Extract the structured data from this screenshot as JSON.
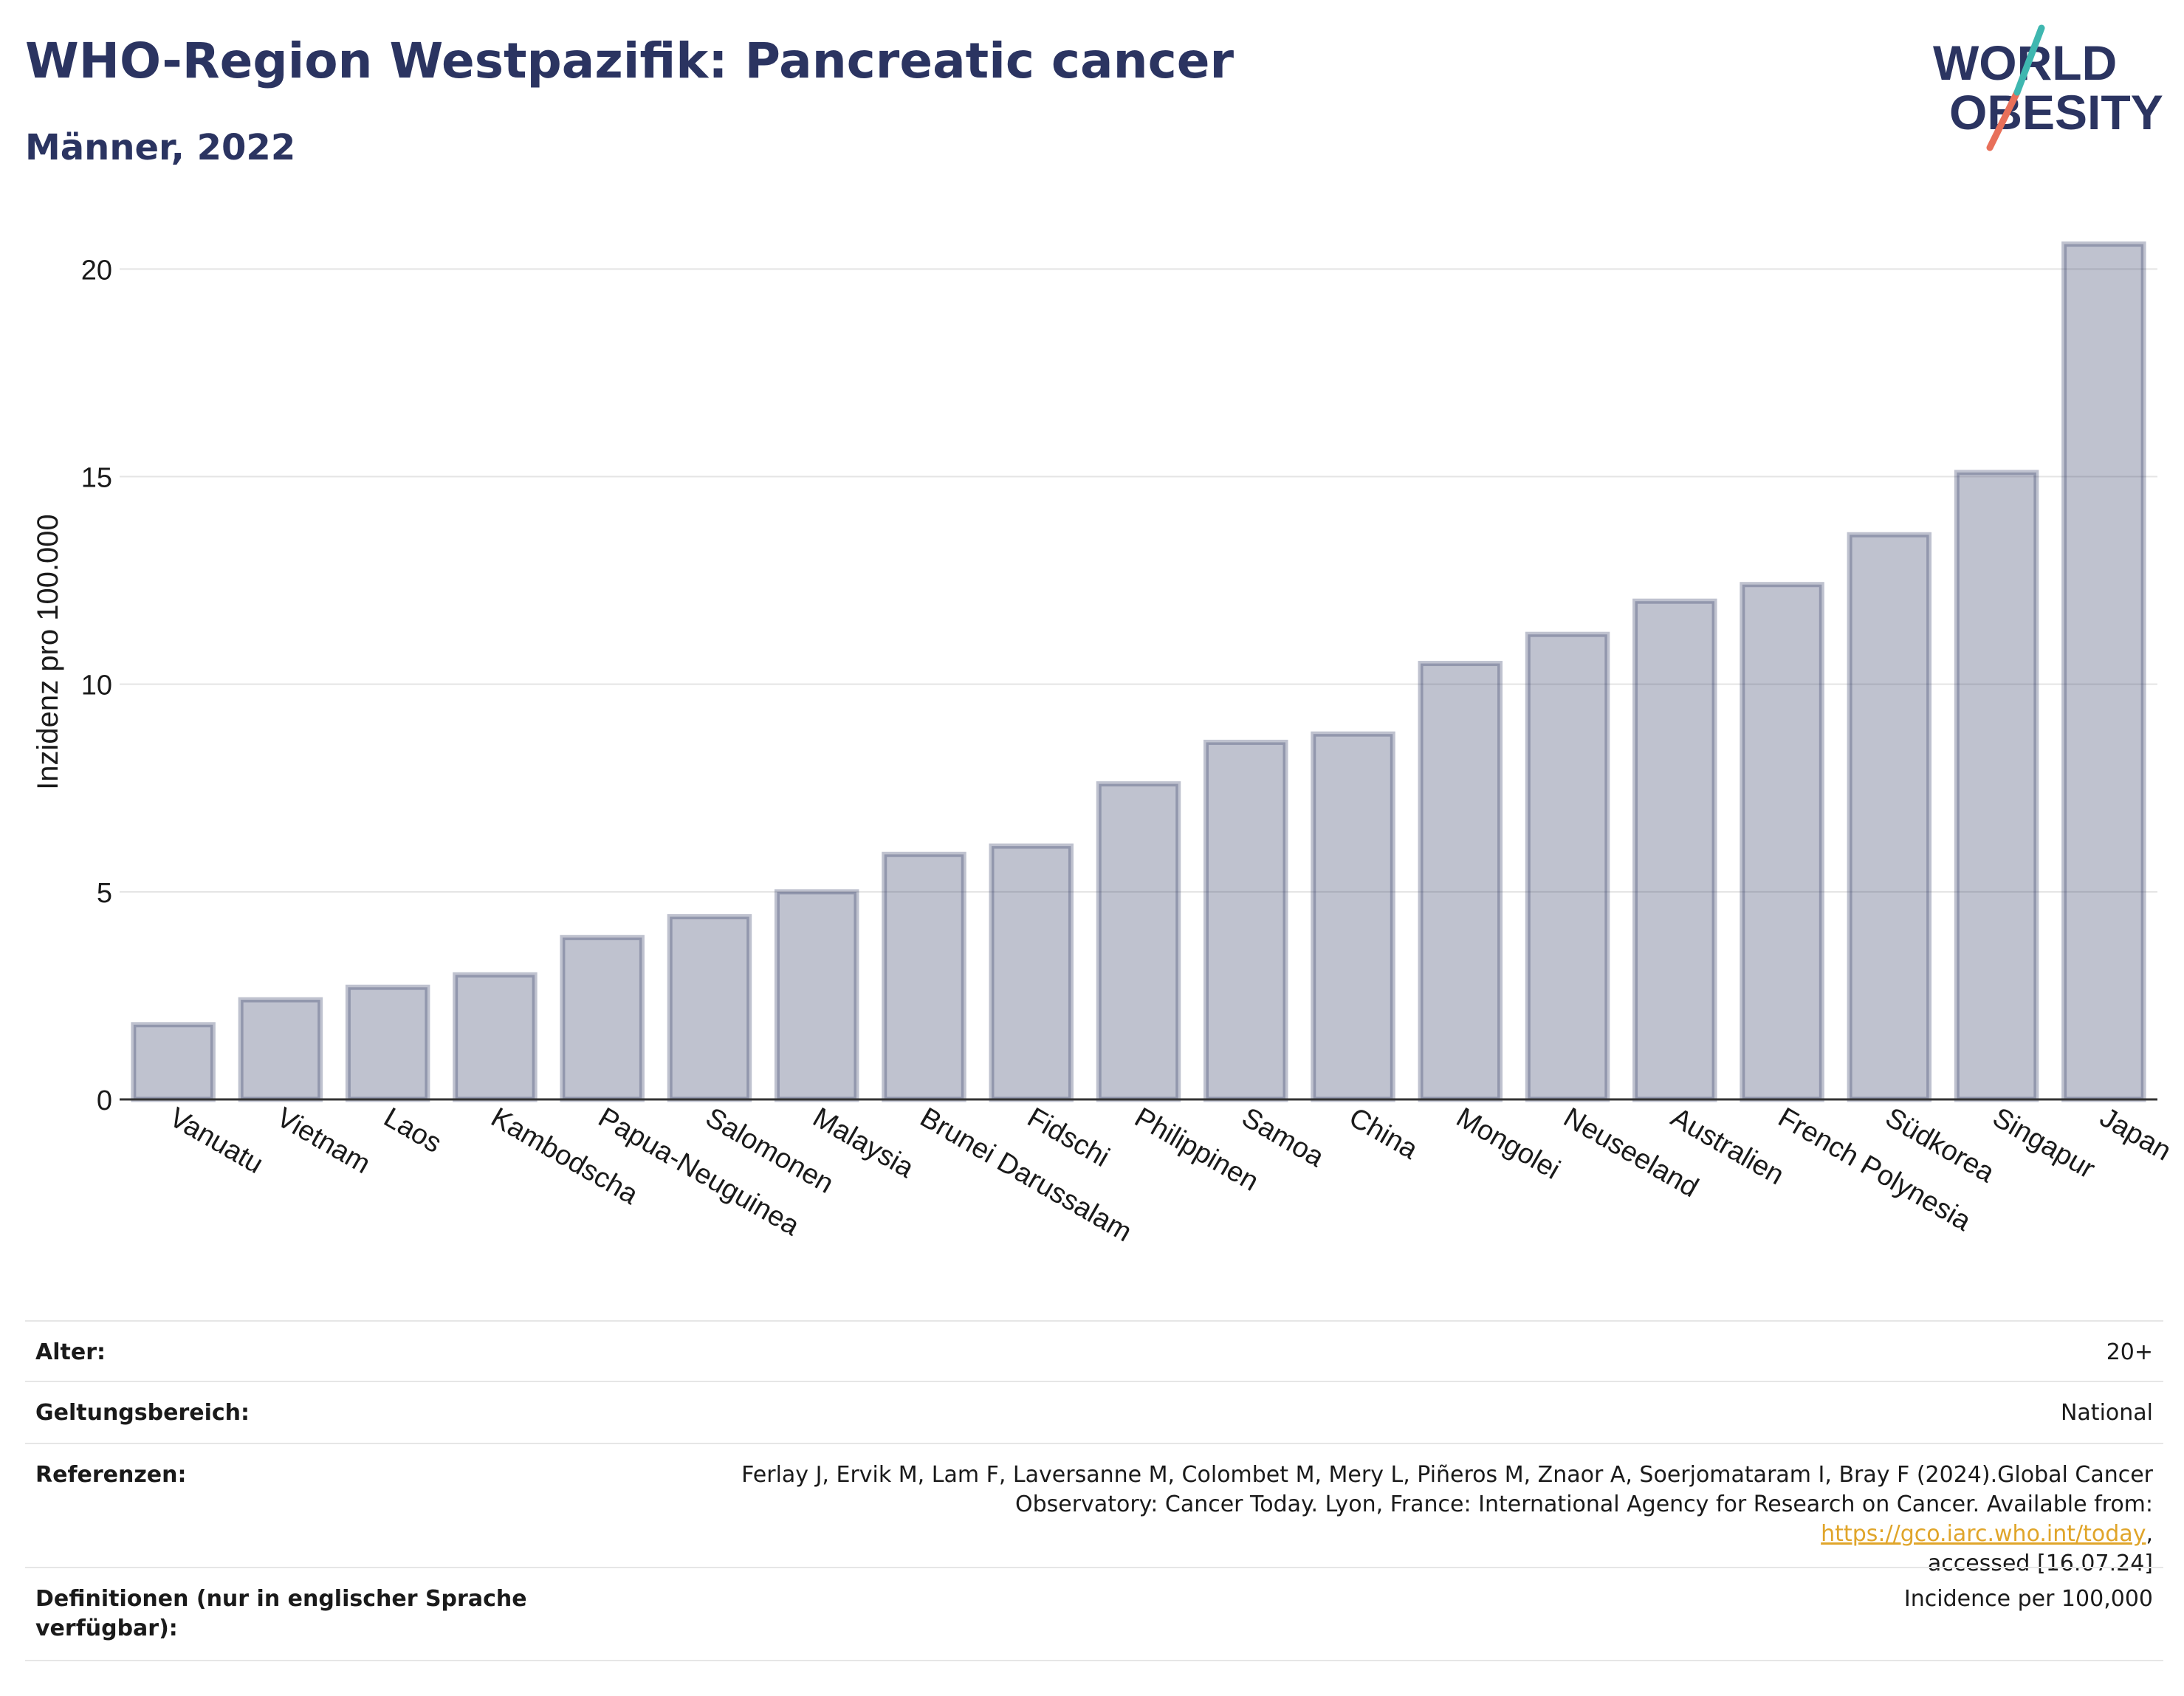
{
  "header": {
    "title": "WHO-Region Westpazifik: Pancreatic cancer",
    "subtitle": "Männer, 2022"
  },
  "logo": {
    "line1": "WORLD",
    "line2": "OBESITY"
  },
  "chart_data": {
    "type": "bar",
    "categories": [
      "Vanuatu",
      "Vietnam",
      "Laos",
      "Kambodscha",
      "Papua-Neuguinea",
      "Salomonen",
      "Malaysia",
      "Brunei Darussalam",
      "Fidschi",
      "Philippinen",
      "Samoa",
      "China",
      "Mongolei",
      "Neuseeland",
      "Australien",
      "French Polynesia",
      "Südkorea",
      "Singapur",
      "Japan"
    ],
    "values": [
      1.8,
      2.4,
      2.7,
      3.0,
      3.9,
      4.4,
      5.0,
      5.9,
      6.1,
      7.6,
      8.6,
      8.8,
      10.5,
      11.2,
      12.0,
      12.4,
      13.6,
      15.1,
      20.6
    ],
    "ylabel": "Inzidenz pro 100.000",
    "xlabel": "",
    "ylim": [
      0,
      21.5
    ],
    "yticks": [
      0,
      5,
      10,
      15,
      20
    ],
    "grid": true,
    "bar_color": "#2b3461"
  },
  "meta": {
    "age_label": "Alter:",
    "age_value": "20+",
    "scope_label": "Geltungsbereich:",
    "scope_value": "National",
    "ref_label": "Referenzen:",
    "ref_text_1": "Ferlay J, Ervik M, Lam F, Laversanne M, Colombet M, Mery L, Piñeros M, Znaor A, Soerjomataram I, Bray F (2024).Global Cancer",
    "ref_text_2": "Observatory: Cancer Today. Lyon, France: International Agency for Research on Cancer. Available from: ",
    "ref_link": "https://gco.iarc.who.int/today",
    "ref_text_3": ",",
    "ref_text_4": "accessed [16.07.24]",
    "def_label": "Definitionen (nur in englischer Sprache verfügbar):",
    "def_value": "Incidence per 100,000"
  }
}
